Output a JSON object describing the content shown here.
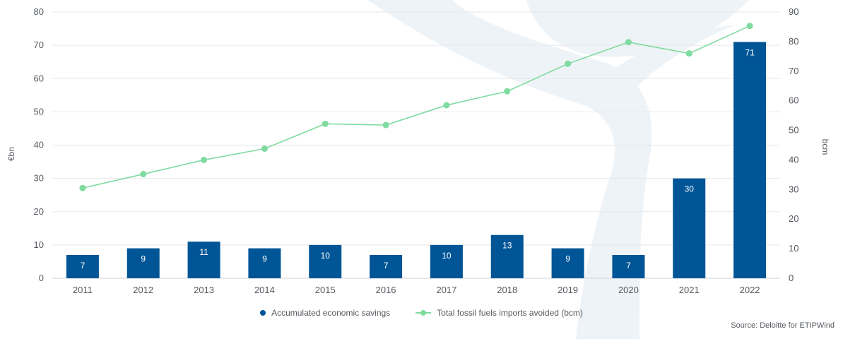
{
  "chart_data": {
    "type": "bar",
    "categories": [
      "2011",
      "2012",
      "2013",
      "2014",
      "2015",
      "2016",
      "2017",
      "2018",
      "2019",
      "2020",
      "2021",
      "2022"
    ],
    "series": [
      {
        "name": "Accumulated economic savings",
        "type": "bar",
        "axis": "left",
        "values": [
          7,
          9,
          11,
          9,
          10,
          7,
          10,
          13,
          9,
          7,
          30,
          71
        ],
        "labels": [
          "7",
          "9",
          "11",
          "9",
          "10",
          "7",
          "10",
          "13",
          "9",
          "7",
          "30",
          "71"
        ]
      },
      {
        "name": "Total fossil fuels imports avoided (bcm)",
        "type": "line",
        "axis": "right",
        "values": [
          30.5,
          35.2,
          40,
          43.8,
          52.2,
          51.8,
          58.5,
          63.2,
          72.5,
          79.8,
          76,
          85.3
        ]
      }
    ],
    "ylabel": "€bn",
    "y2label": "bcm",
    "ylim": [
      0,
      80
    ],
    "y2lim": [
      0,
      90
    ],
    "yticks": [
      "0",
      "10",
      "20",
      "30",
      "40",
      "50",
      "60",
      "70",
      "80"
    ],
    "y2ticks": [
      "0",
      "10",
      "20",
      "30",
      "40",
      "50",
      "60",
      "70",
      "80",
      "90"
    ],
    "grid": true,
    "legend_position": "bottom",
    "source": "Source: Deloitte for ETIPWind",
    "colors": {
      "bar": "#005596",
      "line": "#7fdb9f",
      "grid": "#e6e8ea",
      "watermark": "#eef3f8"
    }
  }
}
